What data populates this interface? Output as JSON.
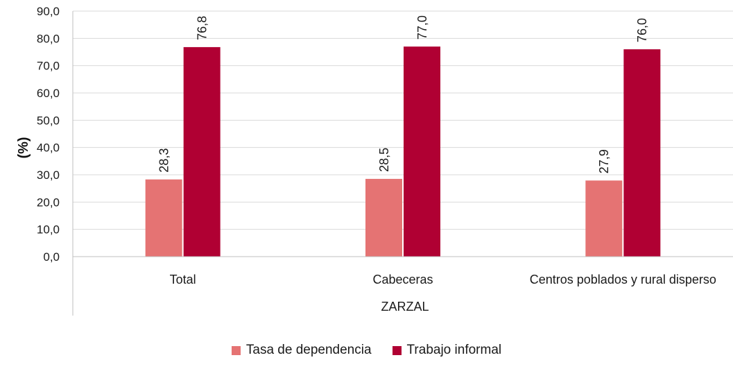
{
  "chart_data": {
    "type": "bar",
    "ylabel": "(%)",
    "group_label": "ZARZAL",
    "ylim": [
      0,
      90
    ],
    "yticks": [
      "0,0",
      "10,0",
      "20,0",
      "30,0",
      "40,0",
      "50,0",
      "60,0",
      "70,0",
      "80,0",
      "90,0"
    ],
    "categories": [
      "Total",
      "Cabeceras",
      "Centros poblados y rural disperso"
    ],
    "series": [
      {
        "name": "Tasa de dependencia",
        "color": "#e57373",
        "values": [
          28.3,
          28.5,
          27.9
        ],
        "labels": [
          "28,3",
          "28,5",
          "27,9"
        ]
      },
      {
        "name": "Trabajo informal",
        "color": "#b00033",
        "values": [
          76.8,
          77.0,
          76.0
        ],
        "labels": [
          "76,8",
          "77,0",
          "76,0"
        ]
      }
    ],
    "grid": true,
    "legend_position": "bottom"
  }
}
